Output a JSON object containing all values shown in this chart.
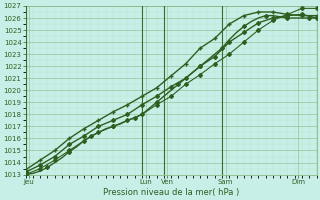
{
  "xlabel": "Pression niveau de la mer( hPa )",
  "bg_color": "#c8eee8",
  "grid_color_major": "#88bb88",
  "grid_color_minor": "#aaddaa",
  "line_color": "#2d6020",
  "ylim": [
    1013,
    1027
  ],
  "yticks": [
    1013,
    1014,
    1015,
    1016,
    1017,
    1018,
    1019,
    1020,
    1021,
    1022,
    1023,
    1024,
    1025,
    1026,
    1027
  ],
  "xlim": [
    0,
    40
  ],
  "day_labels": [
    "Jeu",
    "Lun",
    "Ven",
    "Sam",
    "Dim"
  ],
  "day_positions": [
    0.5,
    16.5,
    19.5,
    27.5,
    37.5
  ],
  "vline_positions": [
    0,
    16,
    19,
    27,
    40
  ],
  "lines": [
    {
      "x": [
        0,
        1,
        2,
        3,
        4,
        5,
        6,
        7,
        8,
        9,
        10,
        11,
        12,
        13,
        14,
        15,
        16,
        17,
        18,
        19,
        20,
        21,
        22,
        23,
        24,
        25,
        26,
        27,
        28,
        29,
        30,
        31,
        32,
        33,
        34,
        35,
        36,
        37,
        38,
        39,
        40
      ],
      "y": [
        1013.0,
        1013.1,
        1013.3,
        1013.6,
        1014.0,
        1014.4,
        1014.9,
        1015.3,
        1015.8,
        1016.2,
        1016.5,
        1016.8,
        1017.0,
        1017.2,
        1017.5,
        1017.7,
        1018.0,
        1018.5,
        1019.0,
        1019.5,
        1020.0,
        1020.5,
        1021.0,
        1021.5,
        1022.0,
        1022.5,
        1023.0,
        1023.5,
        1024.2,
        1024.8,
        1025.3,
        1025.7,
        1026.0,
        1026.2,
        1026.2,
        1026.1,
        1026.0,
        1026.0,
        1026.0,
        1026.0,
        1026.0
      ],
      "marker": "D",
      "markersize": 2.0,
      "linewidth": 1.0,
      "markevery": 3
    },
    {
      "x": [
        0,
        2,
        4,
        6,
        8,
        10,
        12,
        14,
        16,
        18,
        20,
        22,
        24,
        26,
        28,
        30,
        32,
        34,
        36,
        38,
        40
      ],
      "y": [
        1013.2,
        1013.8,
        1014.5,
        1015.5,
        1016.2,
        1017.0,
        1017.5,
        1018.0,
        1018.8,
        1019.5,
        1020.3,
        1021.0,
        1022.0,
        1022.8,
        1024.0,
        1024.8,
        1025.6,
        1026.0,
        1026.2,
        1026.3,
        1026.0
      ],
      "marker": "D",
      "markersize": 2.0,
      "linewidth": 1.0,
      "markevery": 1
    },
    {
      "x": [
        0,
        2,
        4,
        6,
        8,
        10,
        12,
        14,
        16,
        18,
        20,
        22,
        24,
        26,
        28,
        30,
        32,
        34,
        36,
        38,
        40
      ],
      "y": [
        1013.4,
        1014.2,
        1015.0,
        1016.0,
        1016.8,
        1017.5,
        1018.2,
        1018.8,
        1019.5,
        1020.2,
        1021.2,
        1022.2,
        1023.5,
        1024.3,
        1025.5,
        1026.2,
        1026.5,
        1026.5,
        1026.3,
        1026.2,
        1026.2
      ],
      "marker": "+",
      "markersize": 3.5,
      "linewidth": 1.0,
      "markevery": 1
    },
    {
      "x": [
        0,
        2,
        4,
        6,
        8,
        10,
        12,
        14,
        16,
        18,
        20,
        22,
        24,
        26,
        28,
        30,
        32,
        34,
        36,
        38,
        40
      ],
      "y": [
        1013.0,
        1013.5,
        1014.2,
        1015.0,
        1015.8,
        1016.5,
        1017.0,
        1017.5,
        1018.0,
        1018.8,
        1019.5,
        1020.5,
        1021.3,
        1022.2,
        1023.0,
        1024.0,
        1025.0,
        1025.8,
        1026.3,
        1026.8,
        1026.8
      ],
      "marker": "D",
      "markersize": 2.0,
      "linewidth": 0.8,
      "markevery": 1
    }
  ],
  "xtick_minor_count": 40,
  "label_fontsize": 6,
  "tick_fontsize": 5
}
